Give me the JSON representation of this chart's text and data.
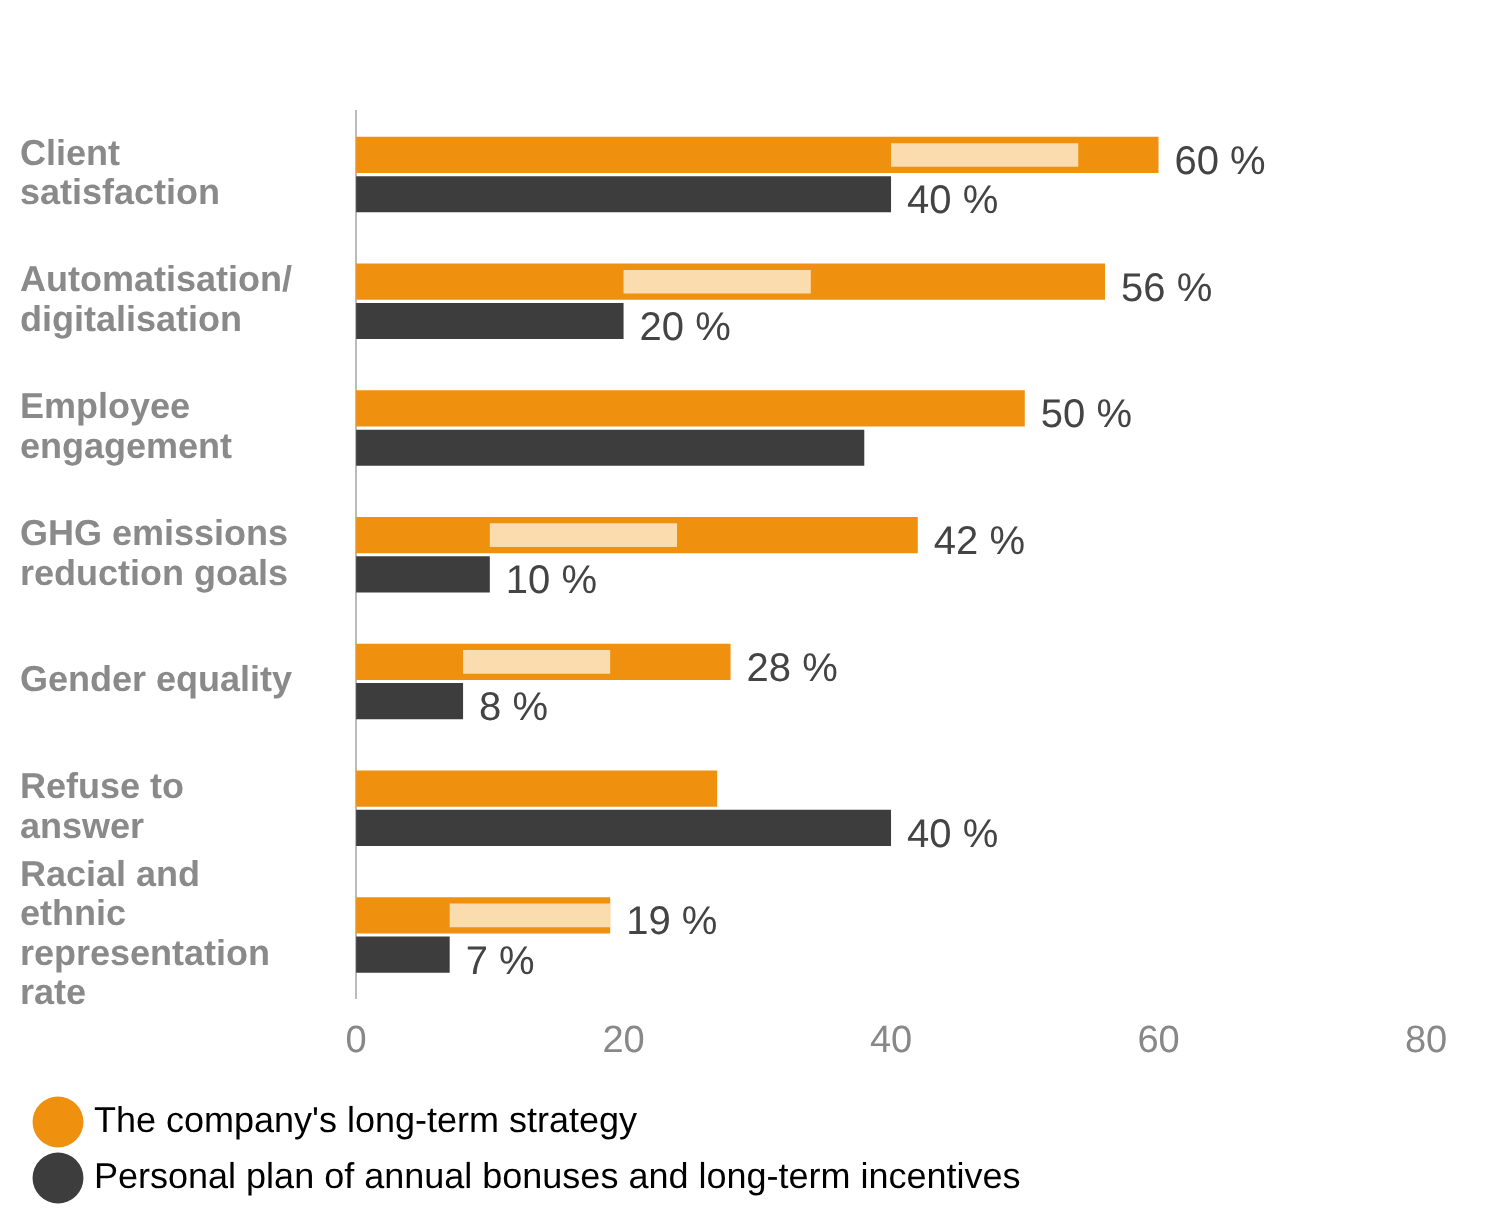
{
  "chart_data": {
    "type": "bar",
    "orientation": "horizontal",
    "categories": [
      "Client satisfaction",
      "Automatisation/digitalisation",
      "Employee engagement",
      "GHG emissions reduction goals",
      "Gender equality",
      "Refuse to answer",
      "Racial and ethnic representation rate"
    ],
    "series": [
      {
        "name": "The company's long-term strategy",
        "color": "#f0900f",
        "values": [
          60,
          56,
          50,
          42,
          28,
          27,
          19
        ],
        "value_labels": [
          "60 %",
          "56 %",
          "50 %",
          "42 %",
          "28 %",
          null,
          "19 %"
        ]
      },
      {
        "color": "#fbdcae",
        "base": [
          40,
          20,
          null,
          10,
          8,
          null,
          7
        ],
        "values": [
          14,
          14,
          null,
          14,
          11,
          null,
          12
        ]
      },
      {
        "name": "Personal plan of annual bonuses and long-term incentives",
        "color": "#3d3d3d",
        "values": [
          40,
          20,
          38,
          10,
          8,
          40,
          7
        ],
        "value_labels": [
          "40 %",
          "20 %",
          null,
          "10 %",
          "8 %",
          "40 %",
          "7 %"
        ]
      }
    ],
    "xlim": [
      0,
      80
    ],
    "xticks": [
      0,
      20,
      40,
      60,
      80
    ],
    "grid": false,
    "legend": "bottom"
  }
}
